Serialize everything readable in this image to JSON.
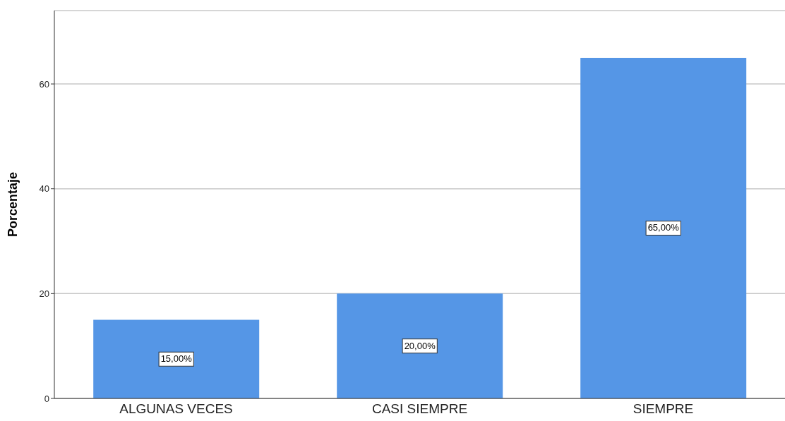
{
  "chart_data": {
    "type": "bar",
    "ylabel": "Porcentaje",
    "categories": [
      "ALGUNAS VECES",
      "CASI SIEMPRE",
      "SIEMPRE"
    ],
    "values": [
      15,
      20,
      65
    ],
    "value_labels": [
      "15,00%",
      "20,00%",
      "65,00%"
    ],
    "color": "#5596e6",
    "ylim": [
      0,
      74
    ],
    "yticks": [
      0,
      20,
      40,
      60
    ],
    "grid": "y",
    "legend": false
  }
}
